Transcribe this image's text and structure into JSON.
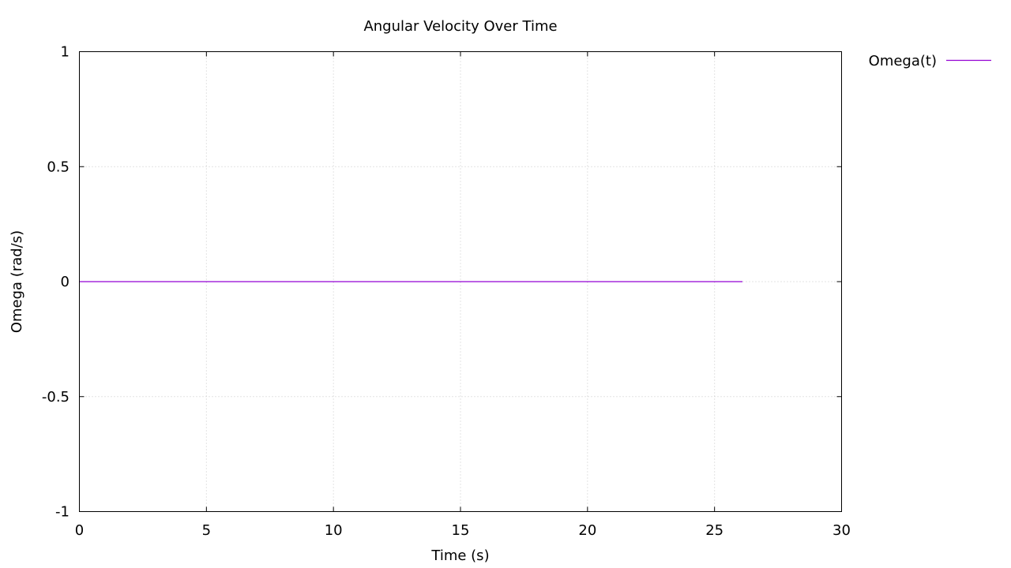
{
  "chart_data": {
    "type": "line",
    "title": "Angular Velocity Over Time",
    "xlabel": "Time (s)",
    "ylabel": "Omega (rad/s)",
    "xlim": [
      0,
      30
    ],
    "ylim": [
      -1,
      1
    ],
    "x_ticks": [
      0,
      5,
      10,
      15,
      20,
      25,
      30
    ],
    "x_tick_labels": [
      "0",
      "5",
      "10",
      "15",
      "20",
      "25",
      "30"
    ],
    "y_ticks": [
      -1,
      -0.5,
      0,
      0.5,
      1
    ],
    "y_tick_labels": [
      "-1",
      "-0.5",
      "0",
      "0.5",
      "1"
    ],
    "grid": true,
    "legend_position": "outside-top-right",
    "series": [
      {
        "name": "Omega(t)",
        "color": "#9400d3",
        "x": [
          0,
          5,
          10,
          15,
          20,
          25,
          26.1
        ],
        "y": [
          0,
          0,
          0,
          0,
          0,
          0,
          0
        ]
      }
    ]
  }
}
